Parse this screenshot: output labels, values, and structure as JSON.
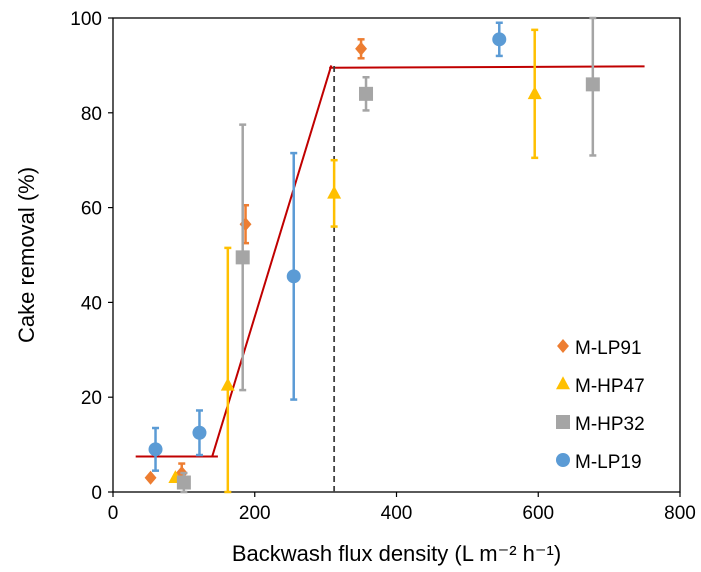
{
  "chart_data": {
    "type": "scatter",
    "xlabel": "Backwash flux density (L m⁻² h⁻¹)",
    "ylabel": "Cake removal (%)",
    "xlim": [
      0,
      800
    ],
    "ylim": [
      0,
      100
    ],
    "xticks": [
      "0",
      "200",
      "400",
      "600",
      "800"
    ],
    "yticks": [
      "0",
      "20",
      "40",
      "60",
      "80",
      "100"
    ],
    "grid": false,
    "legend_position": "bottom-right",
    "series": [
      {
        "name": "M-LP91",
        "marker": "diamond",
        "color": "#ED7D31",
        "points": [
          {
            "x": 53,
            "y": 3,
            "err": 0
          },
          {
            "x": 97,
            "y": 4,
            "err": 2
          },
          {
            "x": 187,
            "y": 56.5,
            "err": 4
          },
          {
            "x": 350,
            "y": 93.5,
            "err": 2
          }
        ]
      },
      {
        "name": "M-HP47",
        "marker": "triangle",
        "color": "#FFC000",
        "points": [
          {
            "x": 88,
            "y": 3,
            "err": 0
          },
          {
            "x": 162,
            "y": 22.5,
            "err": 29
          },
          {
            "x": 312,
            "y": 63,
            "err": 7
          },
          {
            "x": 595,
            "y": 84,
            "err": 13.5
          }
        ]
      },
      {
        "name": "M-HP32",
        "marker": "square",
        "color": "#A5A5A5",
        "points": [
          {
            "x": 100,
            "y": 2,
            "err": 2
          },
          {
            "x": 183,
            "y": 49.5,
            "err": 28
          },
          {
            "x": 357,
            "y": 84,
            "err": 3.5
          },
          {
            "x": 677,
            "y": 86,
            "err": 15
          }
        ]
      },
      {
        "name": "M-LP19",
        "marker": "circle",
        "color": "#5B9BD5",
        "points": [
          {
            "x": 60,
            "y": 9,
            "err": 4.5
          },
          {
            "x": 122,
            "y": 12.5,
            "err": 4.7
          },
          {
            "x": 255,
            "y": 45.5,
            "err": 26
          },
          {
            "x": 545,
            "y": 95.5,
            "err": 3.5
          }
        ]
      }
    ],
    "trend_line": {
      "color": "#C00000",
      "segments": [
        [
          [
            32,
            7.5
          ],
          [
            148,
            7.5
          ]
        ],
        [
          [
            140,
            7.5
          ],
          [
            308,
            90
          ]
        ],
        [
          [
            305,
            89.5
          ],
          [
            750,
            89.8
          ]
        ]
      ]
    },
    "reference_line": {
      "x": 312,
      "y_range": [
        0,
        90
      ],
      "style": "dashed",
      "color": "#404040"
    }
  }
}
